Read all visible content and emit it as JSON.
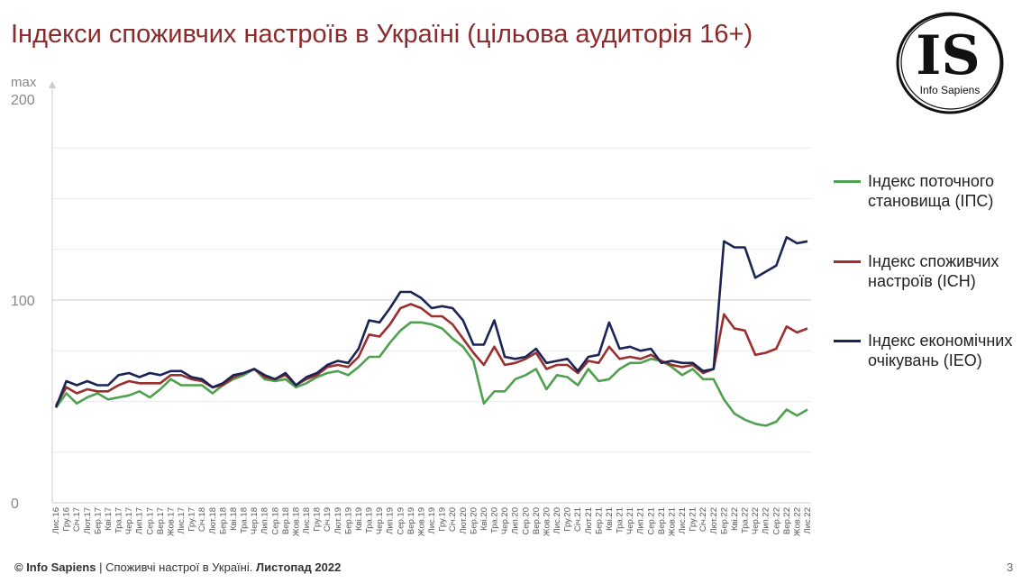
{
  "title": "Індекси споживчих настроїв в Україні (цільова аудиторія 16+)",
  "logo": {
    "letters": "IS",
    "name": "Info Sapiens"
  },
  "footer": {
    "copyright": "© Info Sapiens",
    "separator": " | ",
    "text": "Споживчі настрої в Україні. ",
    "period": "Листопад 2022"
  },
  "page_number": "3",
  "colors": {
    "title": "#8b2a2a",
    "ips": "#4fa14f",
    "існ": "#9b2f2f",
    "ieo": "#1b2455",
    "grid": "#e3e3e3",
    "axis": "#cccccc"
  },
  "chart_data": {
    "type": "line",
    "ylim": [
      0,
      200
    ],
    "y_ticks": [
      0,
      100,
      200
    ],
    "y_top_label": "max",
    "categories": [
      "Лис.16",
      "Гру.16",
      "Січ.17",
      "Лют.17",
      "Бер.17",
      "Кві.17",
      "Тра.17",
      "Чер.17",
      "Лип.17",
      "Сер.17",
      "Вер.17",
      "Жов.17",
      "Лис.17",
      "Гру.17",
      "Січ.18",
      "Лют.18",
      "Бер.18",
      "Кві.18",
      "Тра.18",
      "Чер.18",
      "Лип.18",
      "Сер.18",
      "Вер.18",
      "Жов.18",
      "Лис.18",
      "Гру.18",
      "Січ.19",
      "Лют.19",
      "Бер.19",
      "Кві.19",
      "Тра.19",
      "Чер.19",
      "Лип.19",
      "Сер.19",
      "Вер.19",
      "Жов.19",
      "Лис.19",
      "Гру.19",
      "Січ.20",
      "Лют.20",
      "Бер.20",
      "Кві.20",
      "Тра.20",
      "Чер.20",
      "Лип.20",
      "Сер.20",
      "Вер.20",
      "Жов.20",
      "Лис.20",
      "Гру.20",
      "Січ.21",
      "Лют.21",
      "Бер.21",
      "Кві.21",
      "Тра.21",
      "Чер.21",
      "Лип.21",
      "Сер.21",
      "Вер.21",
      "Жов.21",
      "Лис.21",
      "Гру.21",
      "Січ.22",
      "Лют.22",
      "Бер.22",
      "Кві.22",
      "Тра.22",
      "Чер.22",
      "Лип.22",
      "Сер.22",
      "Вер.22",
      "Жов.22",
      "Лис.22"
    ],
    "series": [
      {
        "key": "ips",
        "name": "Індекс поточного становища (ІПС)",
        "values": [
          47,
          54,
          49,
          52,
          54,
          51,
          52,
          53,
          55,
          52,
          56,
          61,
          58,
          58,
          58,
          54,
          58,
          61,
          63,
          66,
          61,
          60,
          61,
          57,
          59,
          62,
          64,
          65,
          63,
          67,
          72,
          72,
          79,
          85,
          89,
          89,
          88,
          86,
          81,
          77,
          70,
          49,
          55,
          55,
          61,
          63,
          66,
          56,
          63,
          62,
          58,
          66,
          60,
          61,
          66,
          69,
          69,
          71,
          70,
          67,
          63,
          66,
          61,
          61,
          51,
          44,
          41,
          39,
          38,
          40,
          46,
          43,
          46
        ]
      },
      {
        "key": "isn",
        "name": "Індекс споживчих настроїв (ІСН)",
        "values": [
          48,
          57,
          54,
          56,
          55,
          55,
          58,
          60,
          59,
          59,
          59,
          63,
          63,
          61,
          60,
          57,
          58,
          62,
          64,
          66,
          62,
          61,
          63,
          58,
          61,
          63,
          67,
          68,
          67,
          72,
          83,
          82,
          88,
          96,
          98,
          96,
          92,
          92,
          88,
          81,
          74,
          68,
          77,
          68,
          69,
          71,
          74,
          66,
          68,
          68,
          64,
          70,
          69,
          77,
          71,
          72,
          71,
          73,
          70,
          68,
          67,
          68,
          64,
          66,
          93,
          86,
          85,
          73,
          74,
          76,
          87,
          84,
          86
        ]
      },
      {
        "key": "ieo",
        "name": "Індекс економічних очікувань (IEO)",
        "values": [
          47,
          60,
          58,
          60,
          58,
          58,
          63,
          64,
          62,
          64,
          63,
          65,
          65,
          62,
          61,
          57,
          59,
          63,
          64,
          66,
          63,
          61,
          64,
          58,
          62,
          64,
          68,
          70,
          69,
          76,
          90,
          89,
          96,
          104,
          104,
          101,
          96,
          97,
          96,
          90,
          78,
          78,
          90,
          72,
          71,
          72,
          76,
          69,
          70,
          71,
          65,
          72,
          73,
          89,
          76,
          77,
          75,
          76,
          69,
          70,
          69,
          69,
          65,
          66,
          129,
          126,
          126,
          111,
          114,
          117,
          131,
          128,
          129
        ]
      }
    ]
  }
}
